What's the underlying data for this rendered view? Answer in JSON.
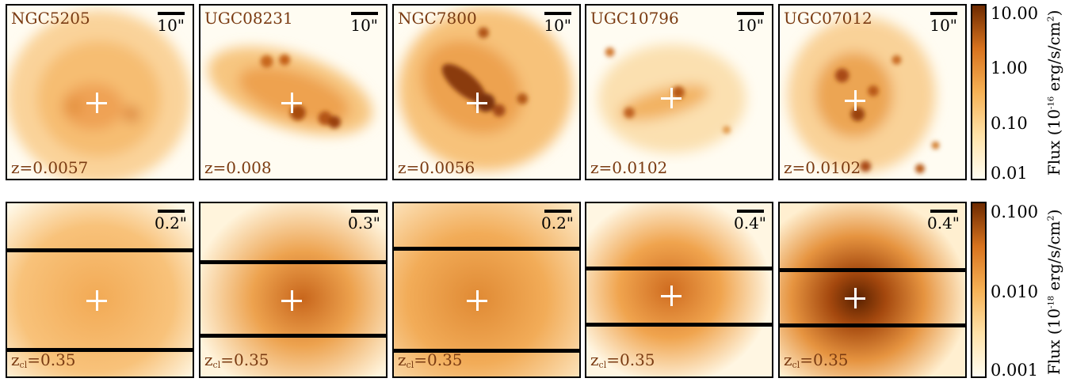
{
  "top_row": [
    {
      "name": "NGC5205",
      "scale": "10\"",
      "z": "z=0.0057"
    },
    {
      "name": "UGC08231",
      "scale": "10\"",
      "z": "z=0.008"
    },
    {
      "name": "NGC7800",
      "scale": "10\"",
      "z": "z=0.0056"
    },
    {
      "name": "UGC10796",
      "scale": "10\"",
      "z": "z=0.0102"
    },
    {
      "name": "UGC07012",
      "scale": "10\"",
      "z": "z=0.0102"
    }
  ],
  "bottom_row": [
    {
      "scale": "0.2\"",
      "z_prefix": "z",
      "z_sub": "cl",
      "z_value": "=0.35"
    },
    {
      "scale": "0.3\"",
      "z_prefix": "z",
      "z_sub": "cl",
      "z_value": "=0.35"
    },
    {
      "scale": "0.2\"",
      "z_prefix": "z",
      "z_sub": "cl",
      "z_value": "=0.35"
    },
    {
      "scale": "0.4\"",
      "z_prefix": "z",
      "z_sub": "cl",
      "z_value": "=0.35"
    },
    {
      "scale": "0.4\"",
      "z_prefix": "z",
      "z_sub": "cl",
      "z_value": "=0.35"
    }
  ],
  "colorbar_top": {
    "ticks": [
      "10.00",
      "1.00",
      "0.10",
      "0.01"
    ],
    "title_prefix": "Flux (10",
    "title_exp": "-16",
    "title_suffix": " erg/s/cm",
    "title_sq": "2",
    "title_end": ")"
  },
  "colorbar_bottom": {
    "ticks": [
      "0.100",
      "0.010",
      "0.001"
    ],
    "title_prefix": "Flux (10",
    "title_exp": "-18",
    "title_suffix": " erg/s/cm",
    "title_sq": "2",
    "title_end": ")"
  },
  "colors": {
    "label": "#7a3b12",
    "low": "#fffdf2",
    "mid": "#f0a040",
    "high": "#7a2e00",
    "crosshair": "#ffffff"
  }
}
